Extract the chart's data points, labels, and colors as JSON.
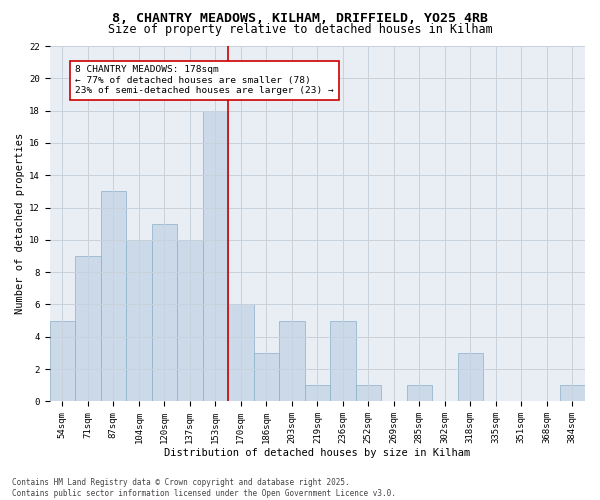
{
  "title_line1": "8, CHANTRY MEADOWS, KILHAM, DRIFFIELD, YO25 4RB",
  "title_line2": "Size of property relative to detached houses in Kilham",
  "xlabel": "Distribution of detached houses by size in Kilham",
  "ylabel": "Number of detached properties",
  "bar_labels": [
    "54sqm",
    "71sqm",
    "87sqm",
    "104sqm",
    "120sqm",
    "137sqm",
    "153sqm",
    "170sqm",
    "186sqm",
    "203sqm",
    "219sqm",
    "236sqm",
    "252sqm",
    "269sqm",
    "285sqm",
    "302sqm",
    "318sqm",
    "335sqm",
    "351sqm",
    "368sqm",
    "384sqm"
  ],
  "bar_values": [
    5,
    9,
    13,
    10,
    11,
    10,
    18,
    6,
    3,
    5,
    1,
    5,
    1,
    0,
    1,
    0,
    3,
    0,
    0,
    0,
    1
  ],
  "bar_color": "#ccd9e8",
  "bar_edgecolor": "#8aafc8",
  "vline_color": "#cc0000",
  "annotation_text": "8 CHANTRY MEADOWS: 178sqm\n← 77% of detached houses are smaller (78)\n23% of semi-detached houses are larger (23) →",
  "annotation_box_color": "#ffffff",
  "annotation_box_edgecolor": "#cc0000",
  "ylim": [
    0,
    22
  ],
  "yticks": [
    0,
    2,
    4,
    6,
    8,
    10,
    12,
    14,
    16,
    18,
    20,
    22
  ],
  "grid_color": "#c8d2dc",
  "background_color": "#e8eef4",
  "footer_text": "Contains HM Land Registry data © Crown copyright and database right 2025.\nContains public sector information licensed under the Open Government Licence v3.0.",
  "title_fontsize": 9.5,
  "subtitle_fontsize": 8.5,
  "axis_label_fontsize": 7.5,
  "tick_fontsize": 6.5,
  "footer_fontsize": 5.5,
  "annotation_fontsize": 6.8
}
